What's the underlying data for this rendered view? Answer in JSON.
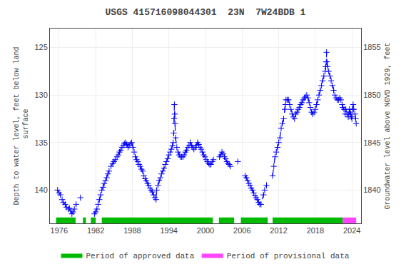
{
  "chart_data": {
    "type": "line",
    "title": "USGS 415716098044301  23N  7W24BDB 1",
    "y_label": "Depth to water level, feet below land\n surface",
    "y2_label": "Groundwater level above NGVD 1929, feet",
    "xlim": [
      1974.5,
      2025.5
    ],
    "xticks": [
      1976,
      1982,
      1988,
      1994,
      2000,
      2006,
      2012,
      2018,
      2024
    ],
    "ylim": [
      143.5,
      123.0
    ],
    "yticks": [
      125,
      130,
      135,
      140
    ],
    "y2lim": [
      1836.5,
      1857.0
    ],
    "y2ticks": [
      1840,
      1845,
      1850,
      1855
    ],
    "grid": true,
    "legend": "lower center",
    "x": [
      1975.75,
      1976.0,
      1976.2,
      1976.5,
      1976.7,
      1977.0,
      1977.2,
      1977.5,
      1977.7,
      1977.9,
      1978.1,
      1978.3,
      1978.5,
      1978.8,
      null,
      1979.5,
      null,
      1981.8,
      1982.0,
      1982.2,
      1982.4,
      1982.6,
      1982.8,
      1983.0,
      1983.2,
      1983.4,
      1983.6,
      1983.8,
      1984.0,
      1984.2,
      1984.5,
      1984.8,
      1985.0,
      1985.2,
      1985.5,
      1985.7,
      1985.9,
      1986.1,
      1986.3,
      1986.5,
      1986.7,
      1986.9,
      1987.1,
      1987.3,
      1987.5,
      1987.7,
      1987.9,
      1988.1,
      1988.3,
      1988.5,
      1988.7,
      1988.9,
      1989.1,
      1989.3,
      1989.5,
      1989.7,
      1989.9,
      1990.1,
      1990.3,
      1990.5,
      1990.7,
      1990.9,
      1991.1,
      1991.3,
      1991.5,
      1991.7,
      1991.9,
      1992.0,
      1992.2,
      1992.4,
      1992.6,
      1992.8,
      1993.0,
      1993.2,
      1993.4,
      1993.6,
      1993.8,
      1994.0,
      1994.2,
      1994.4,
      1994.6,
      1994.7,
      1994.8,
      1994.85,
      1994.9,
      1994.95,
      1995.0,
      1995.1,
      1995.3,
      1995.5,
      1995.7,
      1995.9,
      1996.1,
      1996.3,
      1996.5,
      1996.7,
      1996.9,
      1997.1,
      1997.3,
      1997.5,
      1997.7,
      1997.9,
      1998.1,
      1998.3,
      1998.5,
      1998.7,
      1998.9,
      1999.1,
      1999.3,
      1999.5,
      1999.7,
      1999.9,
      2000.1,
      2000.3,
      2000.5,
      2000.7,
      2000.9,
      2001.1,
      2001.3,
      null,
      2002.3,
      2002.5,
      2002.7,
      2002.9,
      2003.1,
      2003.3,
      2003.5,
      2003.7,
      2003.9,
      2004.1,
      null,
      2005.3,
      null,
      2006.5,
      2006.7,
      2006.9,
      2007.1,
      2007.3,
      2007.5,
      2007.7,
      2007.9,
      2008.1,
      2008.3,
      2008.5,
      2008.7,
      2008.9,
      2009.1,
      2009.5,
      2009.7,
      2010.0,
      null,
      2011.0,
      2011.2,
      2011.4,
      2011.6,
      2011.8,
      2012.0,
      2012.2,
      2012.4,
      2012.6,
      2012.8,
      2013.0,
      2013.1,
      2013.2,
      2013.4,
      2013.6,
      2013.8,
      2014.0,
      2014.2,
      2014.4,
      2014.6,
      2014.8,
      2015.0,
      2015.2,
      2015.4,
      2015.6,
      2015.8,
      2016.0,
      2016.2,
      2016.4,
      2016.6,
      2016.8,
      2017.0,
      2017.2,
      2017.4,
      2017.6,
      2017.8,
      2018.0,
      2018.2,
      2018.4,
      2018.6,
      2018.8,
      2019.0,
      2019.2,
      2019.4,
      2019.6,
      2019.7,
      2019.8,
      2019.85,
      2019.9,
      2020.0,
      2020.2,
      2020.4,
      2020.6,
      2020.8,
      2021.0,
      2021.2,
      2021.4,
      2021.6,
      2021.8,
      2022.0,
      2022.2,
      2022.4,
      2022.5,
      2022.7,
      2022.9,
      2023.0,
      2023.2,
      2023.4,
      2023.5,
      2023.6,
      2023.7,
      2023.8,
      2023.9,
      2024.0,
      2024.1,
      2024.2,
      2024.3,
      2024.5,
      2024.6,
      2024.7
    ],
    "series": [
      {
        "type": "line",
        "color": "#0000ff",
        "line_style": "dashed",
        "marker": "+",
        "values": [
          140.0,
          140.3,
          140.5,
          141.0,
          141.3,
          141.5,
          141.8,
          142.0,
          141.9,
          142.2,
          142.5,
          142.3,
          142.0,
          141.5,
          null,
          140.8,
          null,
          142.5,
          142.3,
          142.0,
          141.5,
          141.0,
          140.5,
          140.0,
          139.7,
          139.3,
          139.0,
          138.7,
          138.3,
          138.0,
          137.5,
          137.2,
          137.0,
          136.8,
          136.5,
          136.3,
          136.0,
          135.8,
          135.5,
          135.3,
          135.1,
          135.0,
          135.2,
          135.5,
          135.3,
          135.1,
          135.0,
          135.5,
          136.0,
          136.5,
          136.8,
          137.0,
          137.3,
          137.5,
          137.8,
          138.0,
          138.5,
          138.8,
          139.0,
          139.3,
          139.5,
          139.8,
          140.0,
          140.2,
          140.5,
          140.8,
          141.0,
          140.0,
          139.5,
          139.0,
          138.7,
          138.3,
          138.0,
          137.7,
          137.3,
          137.0,
          136.7,
          136.3,
          136.0,
          135.7,
          135.3,
          135.0,
          134.0,
          132.5,
          131.0,
          132.0,
          133.0,
          134.5,
          135.5,
          136.0,
          136.3,
          136.5,
          136.5,
          136.5,
          136.3,
          136.0,
          135.8,
          135.5,
          135.3,
          135.0,
          135.3,
          135.5,
          135.7,
          135.5,
          135.3,
          135.0,
          135.2,
          135.5,
          135.7,
          136.0,
          136.3,
          136.5,
          136.8,
          137.0,
          137.2,
          137.3,
          137.3,
          137.0,
          136.8,
          null,
          136.5,
          136.3,
          136.0,
          136.2,
          136.5,
          136.7,
          137.0,
          137.2,
          137.3,
          137.5,
          null,
          137.0,
          null,
          138.5,
          138.7,
          139.0,
          139.3,
          139.5,
          139.8,
          140.0,
          140.3,
          140.6,
          140.8,
          141.0,
          141.3,
          141.5,
          141.5,
          140.5,
          140.0,
          139.5,
          null,
          138.5,
          137.5,
          136.5,
          136.0,
          135.5,
          135.0,
          134.5,
          133.5,
          133.0,
          132.5,
          131.5,
          131.0,
          130.5,
          130.5,
          130.5,
          131.0,
          131.5,
          132.0,
          132.3,
          132.5,
          132.0,
          131.8,
          131.5,
          131.3,
          131.0,
          130.8,
          130.5,
          130.3,
          130.2,
          130.0,
          130.3,
          130.8,
          131.3,
          131.8,
          132.0,
          131.8,
          131.5,
          131.0,
          130.5,
          130.0,
          129.5,
          129.0,
          128.5,
          128.0,
          127.5,
          127.0,
          126.5,
          125.5,
          126.5,
          127.0,
          127.5,
          128.0,
          128.5,
          129.0,
          129.5,
          130.0,
          130.3,
          130.5,
          130.5,
          130.3,
          130.5,
          131.0,
          131.3,
          131.5,
          132.0,
          131.5,
          132.0,
          132.3,
          132.0,
          131.5,
          131.8,
          132.0,
          132.3,
          132.5,
          131.5,
          131.0,
          131.5,
          132.0,
          132.5,
          133.0
        ]
      },
      {
        "type": "span",
        "name": "Period of approved data",
        "color": "#00bb00",
        "spans": [
          [
            1975.5,
            1978.7
          ],
          [
            1979.9,
            1980.4
          ],
          [
            1981.2,
            1982.0
          ],
          [
            1983.0,
            2001.2
          ],
          [
            2002.2,
            2004.7
          ],
          [
            2005.8,
            2010.2
          ],
          [
            2011.0,
            2022.5
          ]
        ]
      },
      {
        "type": "span",
        "name": "Period of provisional data",
        "color": "#ff44ff",
        "spans": [
          [
            2022.5,
            2024.7
          ]
        ]
      }
    ]
  }
}
